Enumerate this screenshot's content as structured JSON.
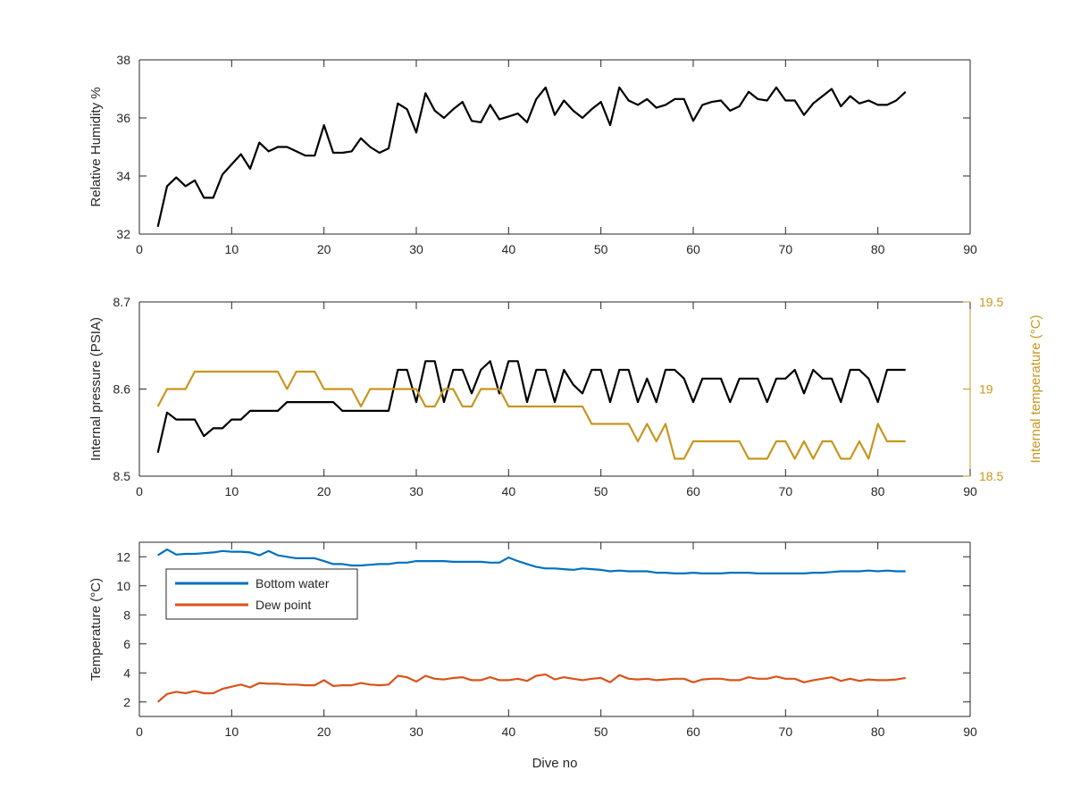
{
  "chart_data": [
    {
      "type": "line",
      "ylabel": "Relative Humidity %",
      "xlim": [
        0,
        90
      ],
      "ylim": [
        32,
        38
      ],
      "xticks": [
        0,
        10,
        20,
        30,
        40,
        50,
        60,
        70,
        80,
        90
      ],
      "yticks": [
        32,
        34,
        36,
        38
      ],
      "grid": false,
      "series": [
        {
          "color": "#000000",
          "x": [
            2,
            3,
            4,
            5,
            6,
            7,
            8,
            9,
            10,
            11,
            12,
            13,
            14,
            15,
            16,
            17,
            18,
            19,
            20,
            21,
            22,
            23,
            24,
            25,
            26,
            27,
            28,
            29,
            30,
            31,
            32,
            33,
            34,
            35,
            36,
            37,
            38,
            39,
            40,
            41,
            42,
            43,
            44,
            45,
            46,
            47,
            48,
            49,
            50,
            51,
            52,
            53,
            54,
            55,
            56,
            57,
            58,
            59,
            60,
            61,
            62,
            63,
            64,
            65,
            66,
            67,
            68,
            69,
            70,
            71,
            72,
            73,
            74,
            75,
            76,
            77,
            78,
            79,
            80,
            81,
            82,
            83
          ],
          "y": [
            32.25,
            33.65,
            33.95,
            33.65,
            33.85,
            33.25,
            33.25,
            34.05,
            34.4,
            34.75,
            34.25,
            35.15,
            34.85,
            35.0,
            35.0,
            34.85,
            34.7,
            34.7,
            35.75,
            34.8,
            34.8,
            34.85,
            35.3,
            35.0,
            34.8,
            34.95,
            36.5,
            36.3,
            35.5,
            36.85,
            36.25,
            36.0,
            36.3,
            36.55,
            35.9,
            35.85,
            36.45,
            35.95,
            36.05,
            36.15,
            35.85,
            36.65,
            37.05,
            36.1,
            36.6,
            36.25,
            36.0,
            36.3,
            36.55,
            35.75,
            37.05,
            36.6,
            36.45,
            36.65,
            36.35,
            36.45,
            36.65,
            36.65,
            35.9,
            36.45,
            36.55,
            36.6,
            36.25,
            36.4,
            36.9,
            36.65,
            36.6,
            37.05,
            36.6,
            36.6,
            36.1,
            36.5,
            36.75,
            37.0,
            36.4,
            36.75,
            36.5,
            36.6,
            36.45,
            36.45,
            36.6,
            36.9
          ]
        }
      ]
    },
    {
      "type": "line",
      "ylabel": "Internal pressure (PSIA)",
      "y2label": "Internal temperature (°C)",
      "xlim": [
        0,
        90
      ],
      "ylim": [
        8.5,
        8.7
      ],
      "y2lim": [
        18.5,
        19.5
      ],
      "xticks": [
        0,
        10,
        20,
        30,
        40,
        50,
        60,
        70,
        80,
        90
      ],
      "yticks": [
        8.5,
        8.6,
        8.7
      ],
      "y2ticks": [
        18.5,
        19,
        19.5
      ],
      "grid": false,
      "series": [
        {
          "axis": "left",
          "color": "#000000",
          "x": [
            2,
            3,
            4,
            5,
            6,
            7,
            8,
            9,
            10,
            11,
            12,
            13,
            14,
            15,
            16,
            17,
            18,
            19,
            20,
            21,
            22,
            23,
            24,
            25,
            26,
            27,
            28,
            29,
            30,
            31,
            32,
            33,
            34,
            35,
            36,
            37,
            38,
            39,
            40,
            41,
            42,
            43,
            44,
            45,
            46,
            47,
            48,
            49,
            50,
            51,
            52,
            53,
            54,
            55,
            56,
            57,
            58,
            59,
            60,
            61,
            62,
            63,
            64,
            65,
            66,
            67,
            68,
            69,
            70,
            71,
            72,
            73,
            74,
            75,
            76,
            77,
            78,
            79,
            80,
            81,
            82,
            83
          ],
          "y": [
            8.527,
            8.573,
            8.565,
            8.565,
            8.565,
            8.546,
            8.555,
            8.555,
            8.565,
            8.565,
            8.575,
            8.575,
            8.575,
            8.575,
            8.585,
            8.585,
            8.585,
            8.585,
            8.585,
            8.585,
            8.575,
            8.575,
            8.575,
            8.575,
            8.575,
            8.575,
            8.622,
            8.622,
            8.585,
            8.632,
            8.632,
            8.585,
            8.622,
            8.622,
            8.595,
            8.622,
            8.632,
            8.595,
            8.632,
            8.632,
            8.585,
            8.622,
            8.622,
            8.585,
            8.622,
            8.605,
            8.595,
            8.622,
            8.622,
            8.585,
            8.622,
            8.622,
            8.585,
            8.612,
            8.585,
            8.622,
            8.622,
            8.612,
            8.585,
            8.612,
            8.612,
            8.612,
            8.585,
            8.612,
            8.612,
            8.612,
            8.585,
            8.612,
            8.612,
            8.622,
            8.595,
            8.622,
            8.612,
            8.612,
            8.585,
            8.622,
            8.622,
            8.612,
            8.585,
            8.622,
            8.622,
            8.622
          ]
        },
        {
          "axis": "right",
          "color": "#C8961E",
          "x": [
            2,
            3,
            4,
            5,
            6,
            7,
            8,
            9,
            10,
            11,
            12,
            13,
            14,
            15,
            16,
            17,
            18,
            19,
            20,
            21,
            22,
            23,
            24,
            25,
            26,
            27,
            28,
            29,
            30,
            31,
            32,
            33,
            34,
            35,
            36,
            37,
            38,
            39,
            40,
            41,
            42,
            43,
            44,
            45,
            46,
            47,
            48,
            49,
            50,
            51,
            52,
            53,
            54,
            55,
            56,
            57,
            58,
            59,
            60,
            61,
            62,
            63,
            64,
            65,
            66,
            67,
            68,
            69,
            70,
            71,
            72,
            73,
            74,
            75,
            76,
            77,
            78,
            79,
            80,
            81,
            82,
            83
          ],
          "y": [
            18.9,
            19.0,
            19.0,
            19.0,
            19.1,
            19.1,
            19.1,
            19.1,
            19.1,
            19.1,
            19.1,
            19.1,
            19.1,
            19.1,
            19.0,
            19.1,
            19.1,
            19.1,
            19.0,
            19.0,
            19.0,
            19.0,
            18.9,
            19.0,
            19.0,
            19.0,
            19.0,
            19.0,
            19.0,
            18.9,
            18.9,
            19.0,
            19.0,
            18.9,
            18.9,
            19.0,
            19.0,
            19.0,
            18.9,
            18.9,
            18.9,
            18.9,
            18.9,
            18.9,
            18.9,
            18.9,
            18.9,
            18.8,
            18.8,
            18.8,
            18.8,
            18.8,
            18.7,
            18.8,
            18.7,
            18.8,
            18.6,
            18.6,
            18.7,
            18.7,
            18.7,
            18.7,
            18.7,
            18.7,
            18.6,
            18.6,
            18.6,
            18.7,
            18.7,
            18.6,
            18.7,
            18.6,
            18.7,
            18.7,
            18.6,
            18.6,
            18.7,
            18.6,
            18.8,
            18.7,
            18.7,
            18.7
          ]
        }
      ]
    },
    {
      "type": "line",
      "xlabel": "Dive no",
      "ylabel": "Temperature (°C)",
      "xlim": [
        0,
        90
      ],
      "ylim": [
        1,
        13
      ],
      "xticks": [
        0,
        10,
        20,
        30,
        40,
        50,
        60,
        70,
        80,
        90
      ],
      "yticks": [
        2,
        4,
        6,
        8,
        10,
        12
      ],
      "grid": false,
      "legend_position": "top-left",
      "series": [
        {
          "name": "Bottom water",
          "color": "#0072BD",
          "x": [
            2,
            3,
            4,
            5,
            6,
            7,
            8,
            9,
            10,
            11,
            12,
            13,
            14,
            15,
            16,
            17,
            18,
            19,
            20,
            21,
            22,
            23,
            24,
            25,
            26,
            27,
            28,
            29,
            30,
            31,
            32,
            33,
            34,
            35,
            36,
            37,
            38,
            39,
            40,
            41,
            42,
            43,
            44,
            45,
            46,
            47,
            48,
            49,
            50,
            51,
            52,
            53,
            54,
            55,
            56,
            57,
            58,
            59,
            60,
            61,
            62,
            63,
            64,
            65,
            66,
            67,
            68,
            69,
            70,
            71,
            72,
            73,
            74,
            75,
            76,
            77,
            78,
            79,
            80,
            81,
            82,
            83
          ],
          "y": [
            12.1,
            12.5,
            12.15,
            12.2,
            12.2,
            12.25,
            12.3,
            12.4,
            12.35,
            12.35,
            12.3,
            12.1,
            12.4,
            12.1,
            12.0,
            11.9,
            11.9,
            11.9,
            11.7,
            11.5,
            11.5,
            11.4,
            11.4,
            11.45,
            11.5,
            11.5,
            11.6,
            11.6,
            11.7,
            11.7,
            11.7,
            11.7,
            11.65,
            11.65,
            11.65,
            11.65,
            11.6,
            11.6,
            11.95,
            11.7,
            11.5,
            11.3,
            11.2,
            11.2,
            11.15,
            11.1,
            11.2,
            11.15,
            11.1,
            11.0,
            11.05,
            11.0,
            11.0,
            11.0,
            10.9,
            10.9,
            10.85,
            10.85,
            10.9,
            10.85,
            10.85,
            10.85,
            10.9,
            10.9,
            10.9,
            10.85,
            10.85,
            10.85,
            10.85,
            10.85,
            10.85,
            10.9,
            10.9,
            10.95,
            11.0,
            11.0,
            11.0,
            11.05,
            11.0,
            11.05,
            11.0,
            11.0
          ]
        },
        {
          "name": "Dew point",
          "color": "#D95319",
          "x": [
            2,
            3,
            4,
            5,
            6,
            7,
            8,
            9,
            10,
            11,
            12,
            13,
            14,
            15,
            16,
            17,
            18,
            19,
            20,
            21,
            22,
            23,
            24,
            25,
            26,
            27,
            28,
            29,
            30,
            31,
            32,
            33,
            34,
            35,
            36,
            37,
            38,
            39,
            40,
            41,
            42,
            43,
            44,
            45,
            46,
            47,
            48,
            49,
            50,
            51,
            52,
            53,
            54,
            55,
            56,
            57,
            58,
            59,
            60,
            61,
            62,
            63,
            64,
            65,
            66,
            67,
            68,
            69,
            70,
            71,
            72,
            73,
            74,
            75,
            76,
            77,
            78,
            79,
            80,
            81,
            82,
            83
          ],
          "y": [
            2.0,
            2.55,
            2.7,
            2.6,
            2.75,
            2.6,
            2.6,
            2.9,
            3.05,
            3.2,
            3.0,
            3.3,
            3.25,
            3.25,
            3.2,
            3.2,
            3.15,
            3.15,
            3.5,
            3.1,
            3.15,
            3.15,
            3.3,
            3.2,
            3.15,
            3.2,
            3.8,
            3.7,
            3.4,
            3.8,
            3.6,
            3.55,
            3.65,
            3.7,
            3.5,
            3.5,
            3.7,
            3.5,
            3.5,
            3.6,
            3.45,
            3.8,
            3.9,
            3.55,
            3.7,
            3.6,
            3.5,
            3.6,
            3.65,
            3.35,
            3.85,
            3.6,
            3.55,
            3.6,
            3.5,
            3.55,
            3.6,
            3.6,
            3.35,
            3.55,
            3.6,
            3.6,
            3.5,
            3.5,
            3.7,
            3.6,
            3.6,
            3.75,
            3.6,
            3.6,
            3.35,
            3.5,
            3.6,
            3.7,
            3.45,
            3.6,
            3.45,
            3.55,
            3.5,
            3.5,
            3.55,
            3.65
          ]
        }
      ]
    }
  ]
}
